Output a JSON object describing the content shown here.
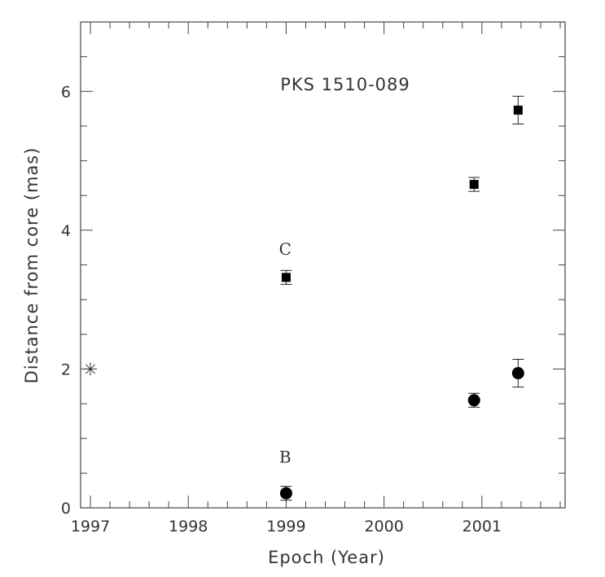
{
  "chart_data": {
    "type": "scatter",
    "title": "PKS 1510-089",
    "xlabel": "Epoch (Year)",
    "ylabel": "Distance from core (mas)",
    "xlim": [
      1996.9,
      2001.85
    ],
    "ylim": [
      0,
      7.0
    ],
    "x_ticks": [
      1997,
      1998,
      1999,
      2000,
      2001
    ],
    "y_ticks": [
      0,
      2,
      4,
      6
    ],
    "grid": false,
    "series": [
      {
        "name": "C",
        "marker": "square",
        "points": [
          {
            "x": 1999.0,
            "y": 3.32,
            "err": 0.1
          },
          {
            "x": 2000.92,
            "y": 4.66,
            "err": 0.1
          },
          {
            "x": 2001.37,
            "y": 5.73,
            "err": 0.2
          }
        ]
      },
      {
        "name": "B",
        "marker": "circle",
        "points": [
          {
            "x": 1999.0,
            "y": 0.21,
            "err": 0.1
          },
          {
            "x": 2000.92,
            "y": 1.55,
            "err": 0.1
          },
          {
            "x": 2001.37,
            "y": 1.94,
            "err": 0.2
          }
        ]
      },
      {
        "name": "",
        "marker": "asterisk",
        "points": [
          {
            "x": 1997.0,
            "y": 2.0
          }
        ]
      }
    ],
    "annotations": [
      {
        "text": "C",
        "x": 1998.99,
        "y": 3.73
      },
      {
        "text": "B",
        "x": 1998.99,
        "y": 0.73
      }
    ]
  }
}
